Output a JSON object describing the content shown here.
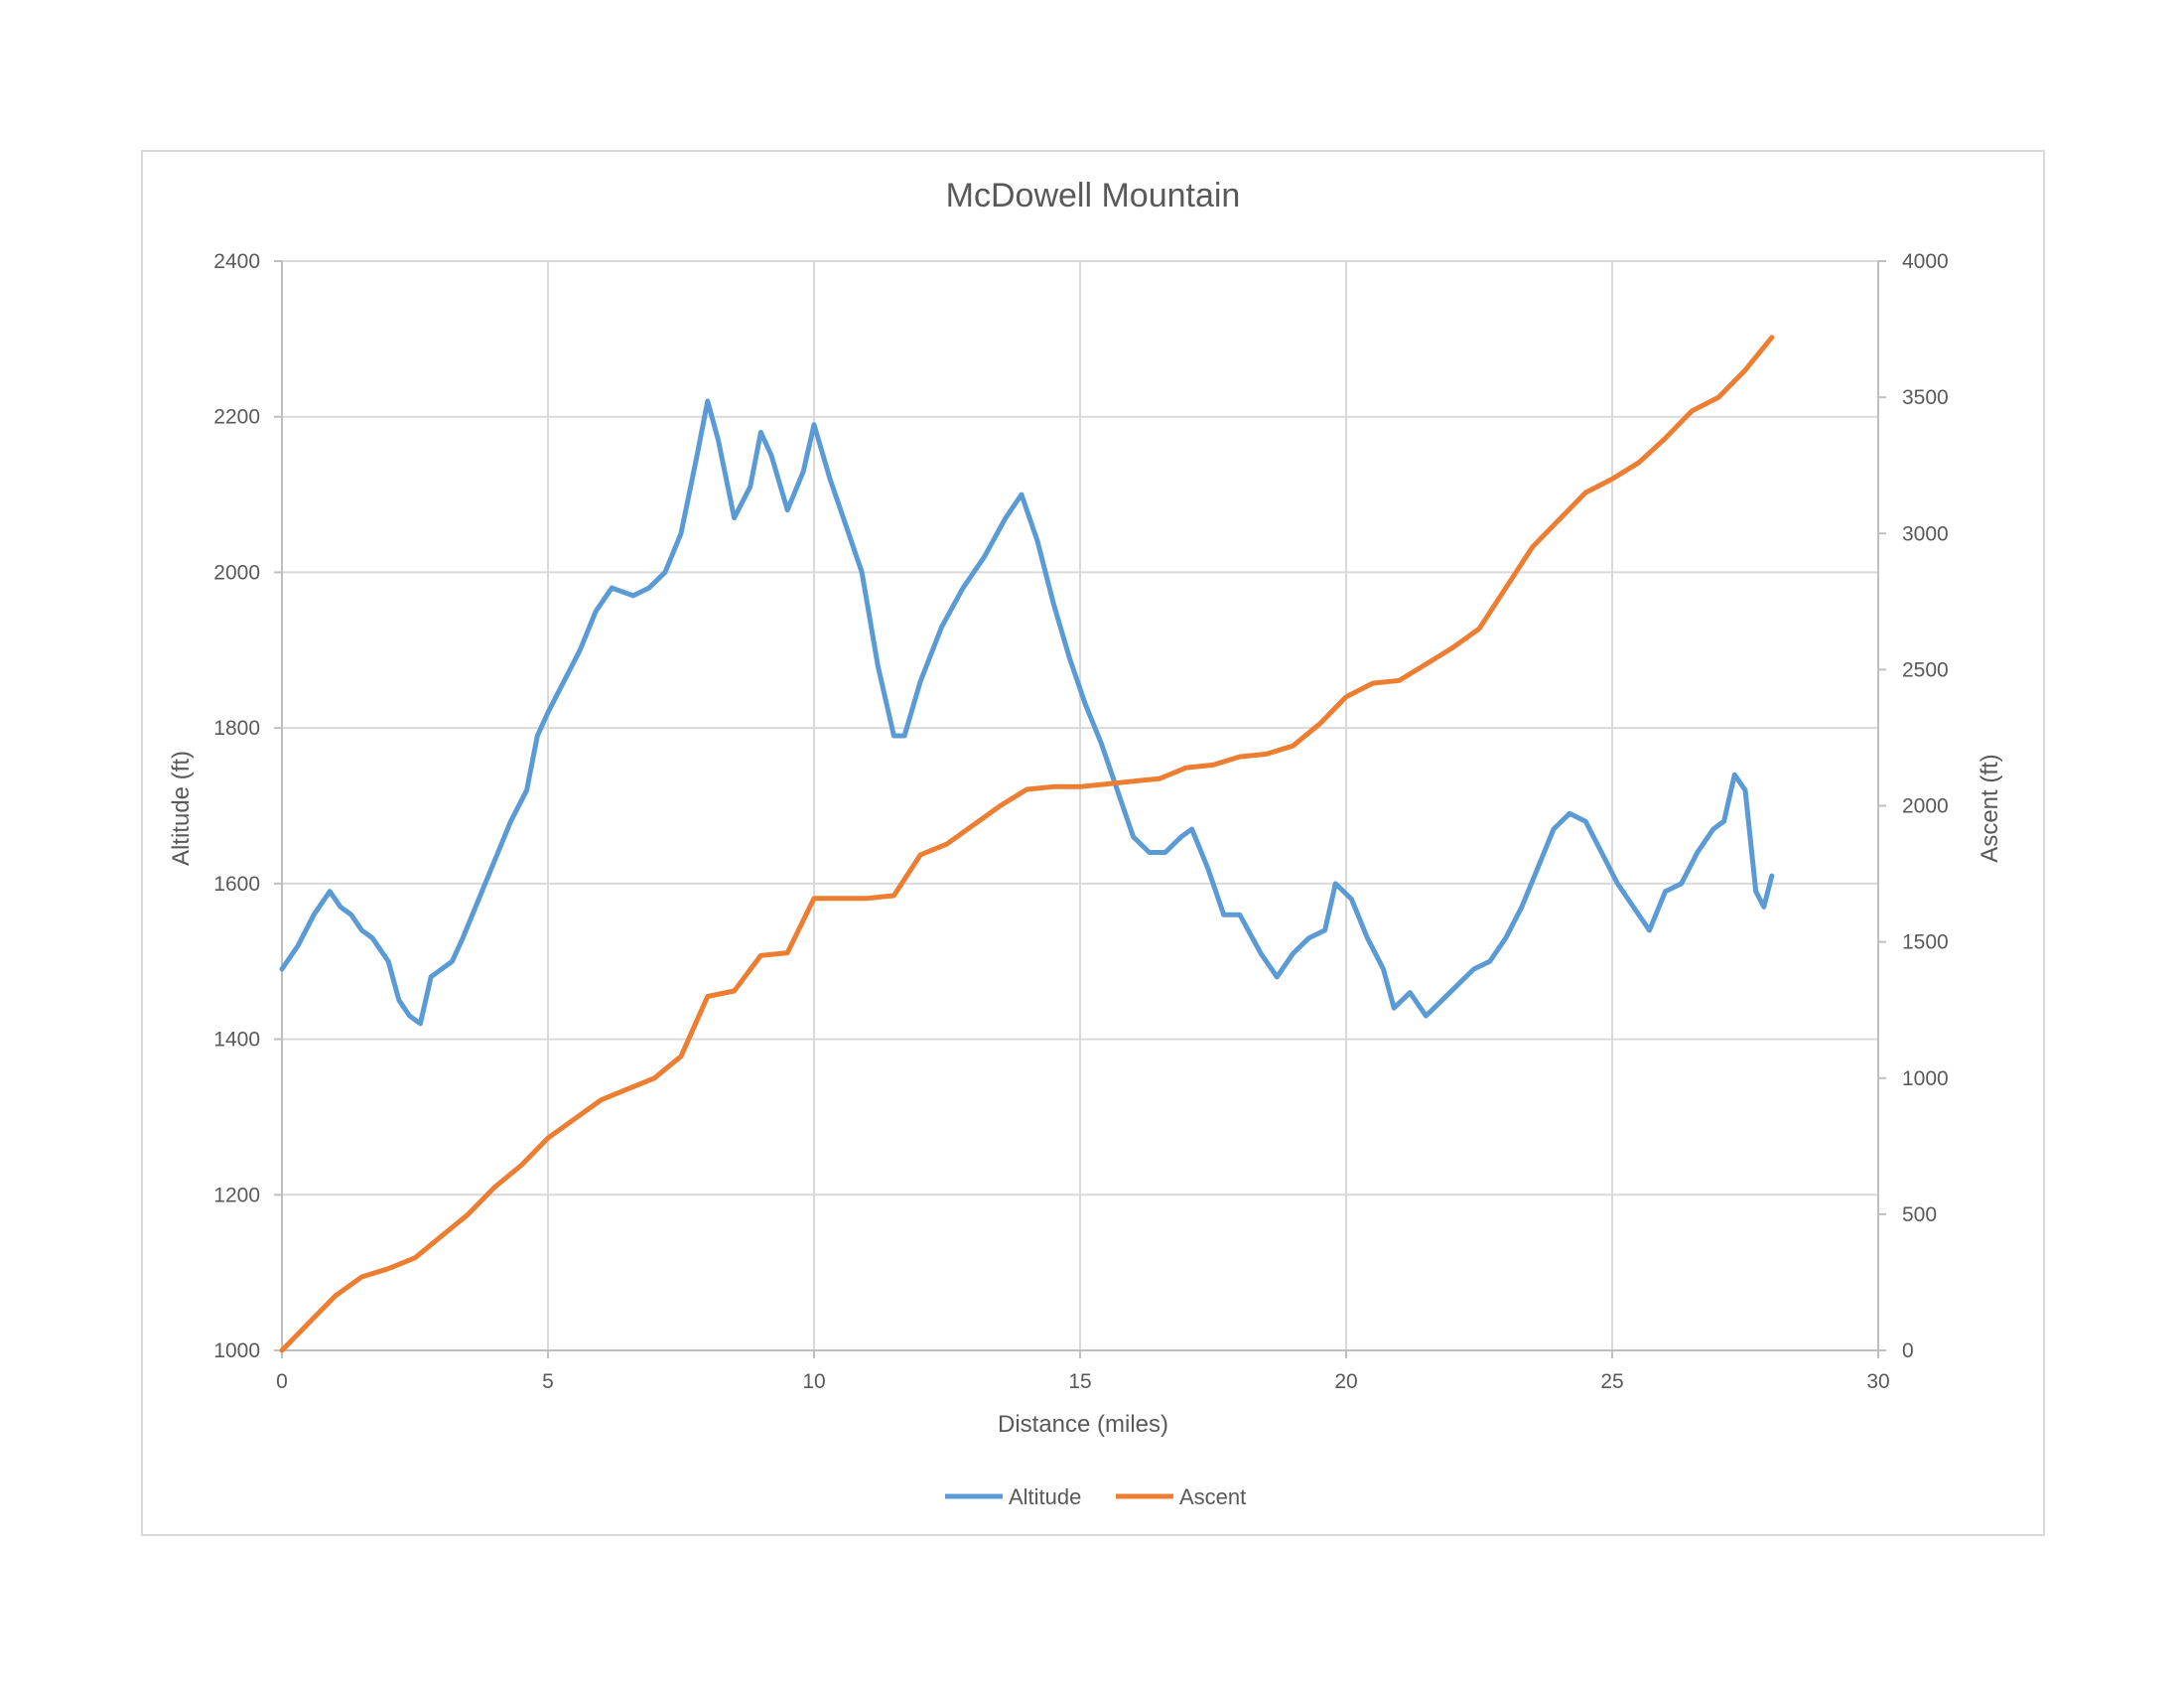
{
  "chart_data": {
    "type": "line",
    "title": "McDowell Mountain",
    "xlabel": "Distance (miles)",
    "ylabel": "Altitude (ft)",
    "y2label": "Ascent (ft)",
    "xlim": [
      0,
      30
    ],
    "ylim": [
      1000,
      2400
    ],
    "y2lim": [
      0,
      4000
    ],
    "x_ticks": [
      "0",
      "5",
      "10",
      "15",
      "20",
      "25",
      "30"
    ],
    "y_ticks": [
      "1000",
      "1200",
      "1400",
      "1600",
      "1800",
      "2000",
      "2200",
      "2400"
    ],
    "y2_ticks": [
      "0",
      "500",
      "1000",
      "1500",
      "2000",
      "2500",
      "3000",
      "3500",
      "4000"
    ],
    "grid": true,
    "legend_position": "bottom",
    "series": [
      {
        "name": "Altitude",
        "axis": "left",
        "color": "#5b9bd5",
        "x": [
          0,
          0.3,
          0.6,
          0.9,
          1.1,
          1.3,
          1.5,
          1.7,
          2.0,
          2.2,
          2.4,
          2.6,
          2.8,
          3.0,
          3.2,
          3.4,
          3.7,
          4.0,
          4.3,
          4.6,
          4.8,
          5.0,
          5.3,
          5.6,
          5.9,
          6.2,
          6.6,
          6.9,
          7.2,
          7.5,
          7.8,
          8.0,
          8.2,
          8.5,
          8.8,
          9.0,
          9.2,
          9.5,
          9.8,
          10.0,
          10.3,
          10.6,
          10.9,
          11.2,
          11.5,
          11.7,
          12.0,
          12.4,
          12.8,
          13.2,
          13.6,
          13.9,
          14.2,
          14.5,
          14.8,
          15.1,
          15.4,
          15.7,
          16.0,
          16.3,
          16.6,
          16.9,
          17.1,
          17.4,
          17.7,
          18.0,
          18.4,
          18.7,
          19.0,
          19.3,
          19.6,
          19.8,
          20.1,
          20.4,
          20.7,
          20.9,
          21.2,
          21.5,
          21.8,
          22.1,
          22.4,
          22.7,
          23.0,
          23.3,
          23.6,
          23.9,
          24.2,
          24.5,
          24.8,
          25.1,
          25.4,
          25.7,
          26.0,
          26.3,
          26.6,
          26.9,
          27.1,
          27.3,
          27.5,
          27.7,
          27.85,
          28.0
        ],
        "values": [
          1490,
          1520,
          1560,
          1590,
          1570,
          1560,
          1540,
          1530,
          1500,
          1450,
          1430,
          1420,
          1480,
          1490,
          1500,
          1530,
          1580,
          1630,
          1680,
          1720,
          1790,
          1820,
          1860,
          1900,
          1950,
          1980,
          1970,
          1980,
          2000,
          2050,
          2150,
          2220,
          2170,
          2070,
          2110,
          2180,
          2150,
          2080,
          2130,
          2190,
          2120,
          2060,
          2000,
          1880,
          1790,
          1790,
          1860,
          1930,
          1980,
          2020,
          2070,
          2100,
          2040,
          1960,
          1890,
          1830,
          1780,
          1720,
          1660,
          1640,
          1640,
          1660,
          1670,
          1620,
          1560,
          1560,
          1510,
          1480,
          1510,
          1530,
          1540,
          1600,
          1580,
          1530,
          1490,
          1440,
          1460,
          1430,
          1450,
          1470,
          1490,
          1500,
          1530,
          1570,
          1620,
          1670,
          1690,
          1680,
          1640,
          1600,
          1570,
          1540,
          1590,
          1600,
          1640,
          1670,
          1680,
          1740,
          1720,
          1590,
          1570,
          1610
        ]
      },
      {
        "name": "Ascent",
        "axis": "right",
        "color": "#ed7d31",
        "x": [
          0,
          0.5,
          1.0,
          1.5,
          2.0,
          2.5,
          3.0,
          3.5,
          4.0,
          4.5,
          5.0,
          5.5,
          6.0,
          6.5,
          7.0,
          7.5,
          8.0,
          8.5,
          9.0,
          9.5,
          10.0,
          10.5,
          11.0,
          11.5,
          12.0,
          12.5,
          13.0,
          13.5,
          14.0,
          14.5,
          15.0,
          15.5,
          16.0,
          16.5,
          17.0,
          17.5,
          18.0,
          18.5,
          19.0,
          19.5,
          20.0,
          20.5,
          21.0,
          21.5,
          22.0,
          22.5,
          23.0,
          23.5,
          24.0,
          24.5,
          25.0,
          25.5,
          26.0,
          26.5,
          27.0,
          27.5,
          28.0
        ],
        "values": [
          0,
          100,
          200,
          270,
          300,
          340,
          420,
          500,
          600,
          680,
          780,
          850,
          920,
          960,
          1000,
          1080,
          1300,
          1320,
          1450,
          1460,
          1660,
          1660,
          1660,
          1670,
          1820,
          1860,
          1930,
          2000,
          2060,
          2070,
          2070,
          2080,
          2090,
          2100,
          2140,
          2150,
          2180,
          2190,
          2220,
          2300,
          2400,
          2450,
          2460,
          2520,
          2580,
          2650,
          2800,
          2950,
          3050,
          3150,
          3200,
          3260,
          3350,
          3450,
          3500,
          3600,
          3720
        ]
      }
    ]
  }
}
